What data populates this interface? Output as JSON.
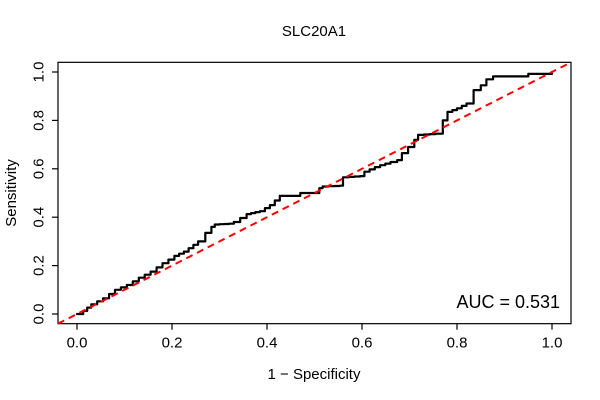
{
  "chart_data": {
    "type": "line",
    "subtype": "roc-curve",
    "title": "SLC20A1",
    "xlabel": "1 − Specificity",
    "ylabel": "Sensitivity",
    "xlim": [
      0.0,
      1.0
    ],
    "ylim": [
      0.0,
      1.0
    ],
    "grid": false,
    "xticks": [
      0.0,
      0.2,
      0.4,
      0.6,
      0.8,
      1.0
    ],
    "yticks": [
      0.0,
      0.2,
      0.4,
      0.6,
      0.8,
      1.0
    ],
    "xtick_labels": [
      "0.0",
      "0.2",
      "0.4",
      "0.6",
      "0.8",
      "1.0"
    ],
    "ytick_labels": [
      "0.0",
      "0.2",
      "0.4",
      "0.6",
      "0.8",
      "1.0"
    ],
    "annotation": "AUC = 0.531",
    "auc_value": 0.531,
    "colors": {
      "roc_curve": "#000000",
      "reference_line": "#ff0000",
      "axis": "#000000",
      "background": "#ffffff"
    },
    "reference_line": {
      "description": "diagonal chance line y = x",
      "style": "dashed",
      "from": [
        0.0,
        0.0
      ],
      "to": [
        1.0,
        1.0
      ]
    },
    "series": [
      {
        "name": "ROC curve (stepped)",
        "points": [
          [
            0.0,
            0.0
          ],
          [
            0.013,
            0.013
          ],
          [
            0.03,
            0.04
          ],
          [
            0.055,
            0.065
          ],
          [
            0.08,
            0.1
          ],
          [
            0.105,
            0.12
          ],
          [
            0.13,
            0.15
          ],
          [
            0.155,
            0.175
          ],
          [
            0.18,
            0.21
          ],
          [
            0.205,
            0.24
          ],
          [
            0.225,
            0.258
          ],
          [
            0.255,
            0.3
          ],
          [
            0.27,
            0.335
          ],
          [
            0.283,
            0.36
          ],
          [
            0.29,
            0.37
          ],
          [
            0.32,
            0.373
          ],
          [
            0.33,
            0.38
          ],
          [
            0.357,
            0.413
          ],
          [
            0.385,
            0.425
          ],
          [
            0.406,
            0.45
          ],
          [
            0.427,
            0.488
          ],
          [
            0.465,
            0.488
          ],
          [
            0.47,
            0.5
          ],
          [
            0.497,
            0.5
          ],
          [
            0.51,
            0.52
          ],
          [
            0.517,
            0.527
          ],
          [
            0.553,
            0.53
          ],
          [
            0.56,
            0.565
          ],
          [
            0.596,
            0.57
          ],
          [
            0.605,
            0.588
          ],
          [
            0.627,
            0.607
          ],
          [
            0.638,
            0.615
          ],
          [
            0.66,
            0.628
          ],
          [
            0.674,
            0.636
          ],
          [
            0.684,
            0.665
          ],
          [
            0.697,
            0.69
          ],
          [
            0.71,
            0.72
          ],
          [
            0.718,
            0.74
          ],
          [
            0.755,
            0.745
          ],
          [
            0.77,
            0.8
          ],
          [
            0.78,
            0.835
          ],
          [
            0.8,
            0.85
          ],
          [
            0.82,
            0.87
          ],
          [
            0.835,
            0.925
          ],
          [
            0.85,
            0.945
          ],
          [
            0.862,
            0.97
          ],
          [
            0.876,
            0.982
          ],
          [
            0.938,
            0.982
          ],
          [
            0.95,
            0.992
          ],
          [
            0.985,
            0.992
          ],
          [
            1.0,
            1.0
          ]
        ]
      }
    ]
  }
}
